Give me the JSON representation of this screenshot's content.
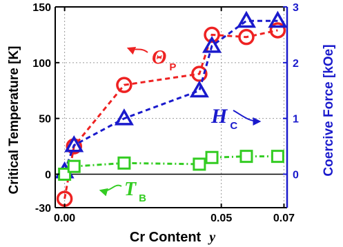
{
  "chart_data": {
    "type": "line",
    "xlabel_main": "Cr Content",
    "xlabel_var": "y",
    "ylabel_left": "Critical Temperature [K]",
    "ylabel_right": "Coercive Force [kOe]",
    "xlim": [
      -0.003,
      0.071
    ],
    "ylim_left": [
      -30,
      150
    ],
    "ylim_right": [
      -0.6,
      3
    ],
    "x_ticks": [
      "0.00",
      "0.05",
      "0.07"
    ],
    "x_tick_values": [
      0.0,
      0.05,
      0.07
    ],
    "y_left_ticks": [
      "-30",
      "0",
      "50",
      "100",
      "150"
    ],
    "y_left_tick_values": [
      -30,
      0,
      50,
      100,
      150
    ],
    "y_right_ticks": [
      "0",
      "1",
      "2",
      "3"
    ],
    "y_right_tick_values": [
      0,
      1,
      2,
      3
    ],
    "grid": true,
    "series": [
      {
        "name": "Θp",
        "label_main": "Θ",
        "label_sub": "P",
        "axis": "left",
        "marker": "circle",
        "color": "#ee2222",
        "x": [
          0.0,
          0.003,
          0.019,
          0.043,
          0.047,
          0.058,
          0.068
        ],
        "y": [
          -22,
          25,
          80,
          90,
          125,
          123,
          129
        ]
      },
      {
        "name": "Hc",
        "label_main": "H",
        "label_sub": "C",
        "axis": "right",
        "marker": "triangle",
        "color": "#1a1acc",
        "x": [
          0.0,
          0.003,
          0.019,
          0.043,
          0.047,
          0.058,
          0.068
        ],
        "y": [
          0.05,
          0.52,
          1.0,
          1.5,
          2.3,
          2.75,
          2.75
        ]
      },
      {
        "name": "TB",
        "label_main": "T",
        "label_sub": "B",
        "axis": "left",
        "marker": "square",
        "color": "#33cc22",
        "x": [
          0.0,
          0.003,
          0.019,
          0.043,
          0.047,
          0.058,
          0.068
        ],
        "y": [
          0,
          7,
          10,
          9,
          15,
          16,
          16
        ]
      }
    ]
  }
}
